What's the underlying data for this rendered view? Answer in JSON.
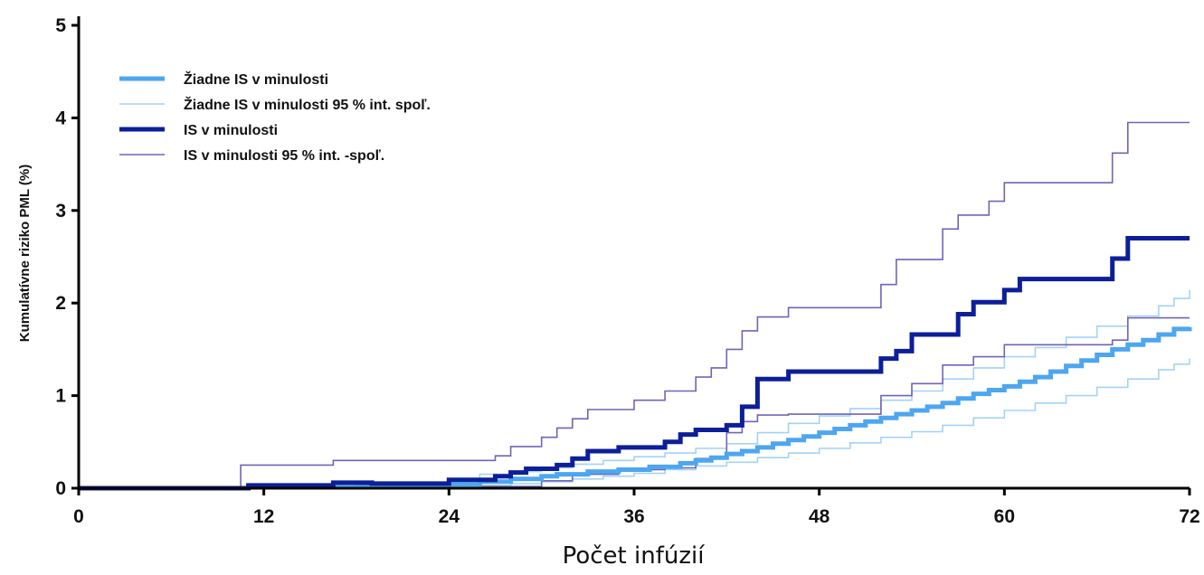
{
  "chart_data": {
    "type": "line",
    "xlabel": "Počet infúzií",
    "ylabel": "Kumulatívne riziko PML (%)",
    "xlim": [
      0,
      72
    ],
    "ylim": [
      0,
      5
    ],
    "x_ticks": [
      0,
      12,
      24,
      36,
      48,
      60,
      72
    ],
    "y_ticks": [
      0,
      1,
      2,
      3,
      4,
      5
    ],
    "grid": false,
    "legend_position": "top-left",
    "series": [
      {
        "name": "Žiadne IS v minulosti",
        "color": "#4da6f0",
        "style": "thick",
        "step": true,
        "points": [
          [
            0,
            0
          ],
          [
            11,
            0.01
          ],
          [
            18,
            0.02
          ],
          [
            24,
            0.04
          ],
          [
            26,
            0.07
          ],
          [
            28,
            0.1
          ],
          [
            30,
            0.13
          ],
          [
            31,
            0.15
          ],
          [
            33,
            0.18
          ],
          [
            35,
            0.2
          ],
          [
            37,
            0.23
          ],
          [
            39,
            0.27
          ],
          [
            40,
            0.3
          ],
          [
            41,
            0.33
          ],
          [
            42,
            0.37
          ],
          [
            43,
            0.4
          ],
          [
            44,
            0.44
          ],
          [
            45,
            0.48
          ],
          [
            46,
            0.52
          ],
          [
            47,
            0.56
          ],
          [
            48,
            0.6
          ],
          [
            49,
            0.64
          ],
          [
            50,
            0.68
          ],
          [
            51,
            0.72
          ],
          [
            52,
            0.76
          ],
          [
            53,
            0.8
          ],
          [
            54,
            0.84
          ],
          [
            55,
            0.88
          ],
          [
            56,
            0.92
          ],
          [
            57,
            0.97
          ],
          [
            58,
            1.02
          ],
          [
            59,
            1.06
          ],
          [
            60,
            1.1
          ],
          [
            61,
            1.15
          ],
          [
            62,
            1.2
          ],
          [
            63,
            1.26
          ],
          [
            64,
            1.32
          ],
          [
            65,
            1.38
          ],
          [
            66,
            1.44
          ],
          [
            67,
            1.5
          ],
          [
            68,
            1.55
          ],
          [
            69,
            1.6
          ],
          [
            70,
            1.66
          ],
          [
            71,
            1.72
          ],
          [
            72,
            1.74
          ]
        ]
      },
      {
        "name": "Žiadne IS v minulosti 95 % int. spoľ.",
        "color": "#a3d3f7",
        "style": "thin",
        "step": true,
        "points": [
          [
            0,
            0
          ],
          [
            11,
            0.02
          ],
          [
            18,
            0.04
          ],
          [
            24,
            0.1
          ],
          [
            26,
            0.15
          ],
          [
            28,
            0.18
          ],
          [
            30,
            0.22
          ],
          [
            32,
            0.26
          ],
          [
            34,
            0.3
          ],
          [
            36,
            0.34
          ],
          [
            38,
            0.38
          ],
          [
            40,
            0.43
          ],
          [
            42,
            0.48
          ],
          [
            44,
            0.6
          ],
          [
            46,
            0.7
          ],
          [
            48,
            0.78
          ],
          [
            50,
            0.86
          ],
          [
            52,
            0.95
          ],
          [
            54,
            1.05
          ],
          [
            56,
            1.18
          ],
          [
            58,
            1.3
          ],
          [
            60,
            1.42
          ],
          [
            62,
            1.52
          ],
          [
            64,
            1.63
          ],
          [
            66,
            1.75
          ],
          [
            68,
            1.86
          ],
          [
            70,
            1.97
          ],
          [
            71,
            2.05
          ],
          [
            72,
            2.14
          ]
        ]
      },
      {
        "name": "",
        "color": "#a3d3f7",
        "style": "thin",
        "step": true,
        "points": [
          [
            0,
            0
          ],
          [
            11,
            0
          ],
          [
            24,
            0.01
          ],
          [
            26,
            0.03
          ],
          [
            28,
            0.05
          ],
          [
            30,
            0.07
          ],
          [
            32,
            0.1
          ],
          [
            34,
            0.13
          ],
          [
            36,
            0.16
          ],
          [
            38,
            0.2
          ],
          [
            40,
            0.24
          ],
          [
            42,
            0.28
          ],
          [
            44,
            0.33
          ],
          [
            46,
            0.38
          ],
          [
            48,
            0.43
          ],
          [
            50,
            0.49
          ],
          [
            52,
            0.55
          ],
          [
            54,
            0.61
          ],
          [
            56,
            0.68
          ],
          [
            58,
            0.76
          ],
          [
            60,
            0.84
          ],
          [
            62,
            0.92
          ],
          [
            64,
            1.0
          ],
          [
            66,
            1.09
          ],
          [
            68,
            1.18
          ],
          [
            70,
            1.28
          ],
          [
            71,
            1.34
          ],
          [
            72,
            1.4
          ]
        ]
      },
      {
        "name": "IS v minulosti",
        "color": "#0c1f99",
        "style": "thick",
        "step": true,
        "points": [
          [
            0,
            0
          ],
          [
            11,
            0.03
          ],
          [
            16.5,
            0.06
          ],
          [
            19,
            0.05
          ],
          [
            24,
            0.09
          ],
          [
            27,
            0.13
          ],
          [
            28,
            0.17
          ],
          [
            29,
            0.21
          ],
          [
            31,
            0.25
          ],
          [
            32,
            0.32
          ],
          [
            33,
            0.4
          ],
          [
            35,
            0.44
          ],
          [
            38,
            0.5
          ],
          [
            39,
            0.58
          ],
          [
            40,
            0.63
          ],
          [
            42,
            0.68
          ],
          [
            43,
            0.88
          ],
          [
            44,
            1.18
          ],
          [
            46,
            1.26
          ],
          [
            52,
            1.4
          ],
          [
            53,
            1.48
          ],
          [
            54,
            1.66
          ],
          [
            57,
            1.88
          ],
          [
            58,
            2.01
          ],
          [
            60,
            2.14
          ],
          [
            61,
            2.26
          ],
          [
            67,
            2.48
          ],
          [
            68,
            2.7
          ],
          [
            72,
            2.7
          ]
        ]
      },
      {
        "name": "IS v minulosti 95 % int. -spoľ.",
        "color": "#7064b7",
        "style": "thin",
        "step": true,
        "points": [
          [
            0,
            0
          ],
          [
            10.5,
            0.25
          ],
          [
            16.5,
            0.3
          ],
          [
            24,
            0.3
          ],
          [
            27,
            0.35
          ],
          [
            28,
            0.45
          ],
          [
            30,
            0.55
          ],
          [
            31,
            0.65
          ],
          [
            32,
            0.75
          ],
          [
            33,
            0.85
          ],
          [
            36,
            0.95
          ],
          [
            38,
            1.05
          ],
          [
            40,
            1.2
          ],
          [
            41,
            1.3
          ],
          [
            42,
            1.5
          ],
          [
            43,
            1.7
          ],
          [
            44,
            1.85
          ],
          [
            46,
            1.95
          ],
          [
            52,
            2.2
          ],
          [
            53,
            2.47
          ],
          [
            56,
            2.8
          ],
          [
            57,
            2.95
          ],
          [
            59,
            3.1
          ],
          [
            60,
            3.3
          ],
          [
            67,
            3.62
          ],
          [
            68,
            3.95
          ],
          [
            72,
            3.95
          ]
        ]
      },
      {
        "name": "",
        "color": "#7064b7",
        "style": "thin",
        "step": true,
        "points": [
          [
            0,
            0
          ],
          [
            11,
            0
          ],
          [
            24,
            0
          ],
          [
            26,
            0.02
          ],
          [
            30,
            0.08
          ],
          [
            32,
            0.15
          ],
          [
            35,
            0.2
          ],
          [
            38,
            0.22
          ],
          [
            40,
            0.32
          ],
          [
            42,
            0.6
          ],
          [
            43,
            0.72
          ],
          [
            44,
            0.79
          ],
          [
            46,
            0.8
          ],
          [
            52,
            1.0
          ],
          [
            54,
            1.13
          ],
          [
            56,
            1.33
          ],
          [
            58,
            1.42
          ],
          [
            60,
            1.55
          ],
          [
            67,
            1.6
          ],
          [
            68,
            1.84
          ],
          [
            72,
            1.84
          ]
        ]
      }
    ]
  }
}
